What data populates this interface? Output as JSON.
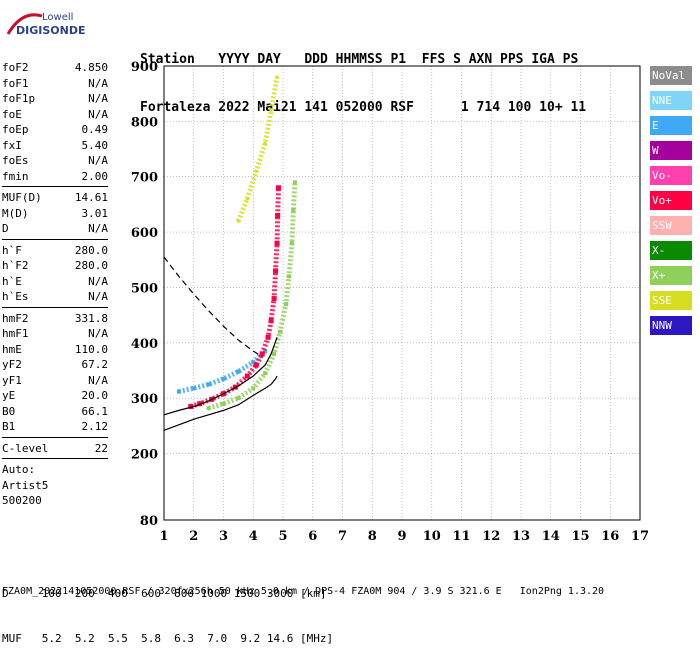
{
  "logo": {
    "line1": "Lowell",
    "line2": "DIGISONDE"
  },
  "header": {
    "line1": "Station   YYYY DAY   DDD HHMMSS P1  FFS S AXN PPS IGA PS",
    "line2": "Fortaleza 2022 Mai21 141 052000 RSF      1 714 100 10+ 11"
  },
  "params": [
    {
      "k": "foF2",
      "v": "4.850"
    },
    {
      "k": "foF1",
      "v": "N/A"
    },
    {
      "k": "foF1p",
      "v": "N/A"
    },
    {
      "k": "foE",
      "v": "N/A"
    },
    {
      "k": "foEp",
      "v": "0.49"
    },
    {
      "k": "fxI",
      "v": "5.40"
    },
    {
      "k": "foEs",
      "v": "N/A"
    },
    {
      "k": "fmin",
      "v": "2.00"
    },
    {
      "sep": true
    },
    {
      "k": "MUF(D)",
      "v": "14.61"
    },
    {
      "k": "M(D)",
      "v": "3.01"
    },
    {
      "k": "D",
      "v": "N/A"
    },
    {
      "sep": true
    },
    {
      "k": "h`F",
      "v": "280.0"
    },
    {
      "k": "h`F2",
      "v": "280.0"
    },
    {
      "k": "h`E",
      "v": "N/A"
    },
    {
      "k": "h`Es",
      "v": "N/A"
    },
    {
      "sep": true
    },
    {
      "k": "hmF2",
      "v": "331.8"
    },
    {
      "k": "hmF1",
      "v": "N/A"
    },
    {
      "k": "hmE",
      "v": "110.0"
    },
    {
      "k": "yF2",
      "v": "67.2"
    },
    {
      "k": "yF1",
      "v": "N/A"
    },
    {
      "k": "yE",
      "v": "20.0"
    },
    {
      "k": "B0",
      "v": "66.1"
    },
    {
      "k": "B1",
      "v": "2.12"
    },
    {
      "sep": true
    },
    {
      "k": "C-level",
      "v": "22"
    },
    {
      "sep": true
    },
    {
      "k": "Auto:",
      "v": ""
    },
    {
      "k": "Artist5",
      "v": ""
    },
    {
      "k": "500200",
      "v": ""
    }
  ],
  "legend": [
    {
      "label": "NoVal",
      "color": "#8c8c8c"
    },
    {
      "label": "NNE",
      "color": "#7fd4f7"
    },
    {
      "label": "E",
      "color": "#3fa9f5"
    },
    {
      "label": "W",
      "color": "#a4009b"
    },
    {
      "label": "Vo-",
      "color": "#ff3fae"
    },
    {
      "label": "Vo+",
      "color": "#ff0045"
    },
    {
      "label": "SSW",
      "color": "#ffb0b0"
    },
    {
      "label": "X-",
      "color": "#0a8a00"
    },
    {
      "label": "X+",
      "color": "#8fd05a"
    },
    {
      "label": "SSE",
      "color": "#d7dd21"
    },
    {
      "label": "NNW",
      "color": "#2d16c4"
    }
  ],
  "bottom": {
    "line1": "D     100  200  400  600  800 1000 1500 3000 [km]",
    "line2": "MUF   5.2  5.2  5.5  5.8  6.3  7.0  9.2 14.6 [MHz]"
  },
  "footer": "FZA0M_2022141052000.RSF / 320fx256h 50 kHz 5.0 km / DPS-4 FZA0M 904 / 3.9 S 321.6 E   Ion2Png 1.3.20",
  "chart_data": {
    "type": "scatter",
    "xlim": [
      1,
      17
    ],
    "ylim": [
      80,
      900
    ],
    "xticks": [
      1,
      2,
      3,
      4,
      5,
      6,
      7,
      8,
      9,
      10,
      11,
      12,
      13,
      14,
      15,
      16,
      17
    ],
    "yticks": [
      80,
      200,
      300,
      400,
      500,
      600,
      700,
      800,
      900
    ],
    "grid": true,
    "legend_position": "right",
    "o_trace": {
      "color": "#ff0045",
      "x": [
        1.9,
        2.2,
        2.6,
        3.0,
        3.4,
        3.8,
        4.1,
        4.3,
        4.5,
        4.6,
        4.7,
        4.75,
        4.8,
        4.82,
        4.85
      ],
      "y": [
        285,
        290,
        298,
        308,
        320,
        340,
        360,
        380,
        410,
        440,
        480,
        530,
        580,
        630,
        680
      ]
    },
    "x_trace": {
      "color": "#8fd05a",
      "x": [
        2.5,
        3.0,
        3.5,
        4.0,
        4.4,
        4.7,
        4.9,
        5.1,
        5.2,
        5.3,
        5.35,
        5.4
      ],
      "y": [
        282,
        290,
        300,
        318,
        345,
        380,
        420,
        470,
        520,
        580,
        640,
        690
      ]
    },
    "e_trace": {
      "color": "#3fa9f5",
      "x": [
        1.5,
        2.0,
        2.5,
        3.0,
        3.5,
        4.0,
        4.4
      ],
      "y": [
        312,
        318,
        325,
        335,
        348,
        365,
        385
      ]
    },
    "multihop_trace": {
      "color": "#d7dd21",
      "x": [
        3.5,
        3.8,
        4.1,
        4.4,
        4.6,
        4.8
      ],
      "y": [
        620,
        660,
        710,
        760,
        820,
        880
      ]
    },
    "profile_curve": {
      "x": [
        1.0,
        1.5,
        2.0,
        2.5,
        3.0,
        3.5,
        4.0,
        4.4,
        4.6,
        4.75,
        4.8
      ],
      "y": [
        242,
        252,
        262,
        270,
        278,
        288,
        305,
        318,
        325,
        335,
        340
      ]
    },
    "dashed_curve": {
      "x": [
        1.0,
        1.5,
        2.0,
        2.5,
        3.0,
        3.5,
        4.0,
        4.3
      ],
      "y": [
        555,
        520,
        488,
        458,
        430,
        405,
        385,
        375
      ]
    },
    "solid_top_curve": {
      "x": [
        1.0,
        1.5,
        2.0,
        2.5,
        3.0,
        3.5,
        4.0,
        4.4,
        4.6,
        4.8
      ],
      "y": [
        270,
        278,
        285,
        295,
        308,
        322,
        340,
        360,
        380,
        410
      ]
    }
  }
}
